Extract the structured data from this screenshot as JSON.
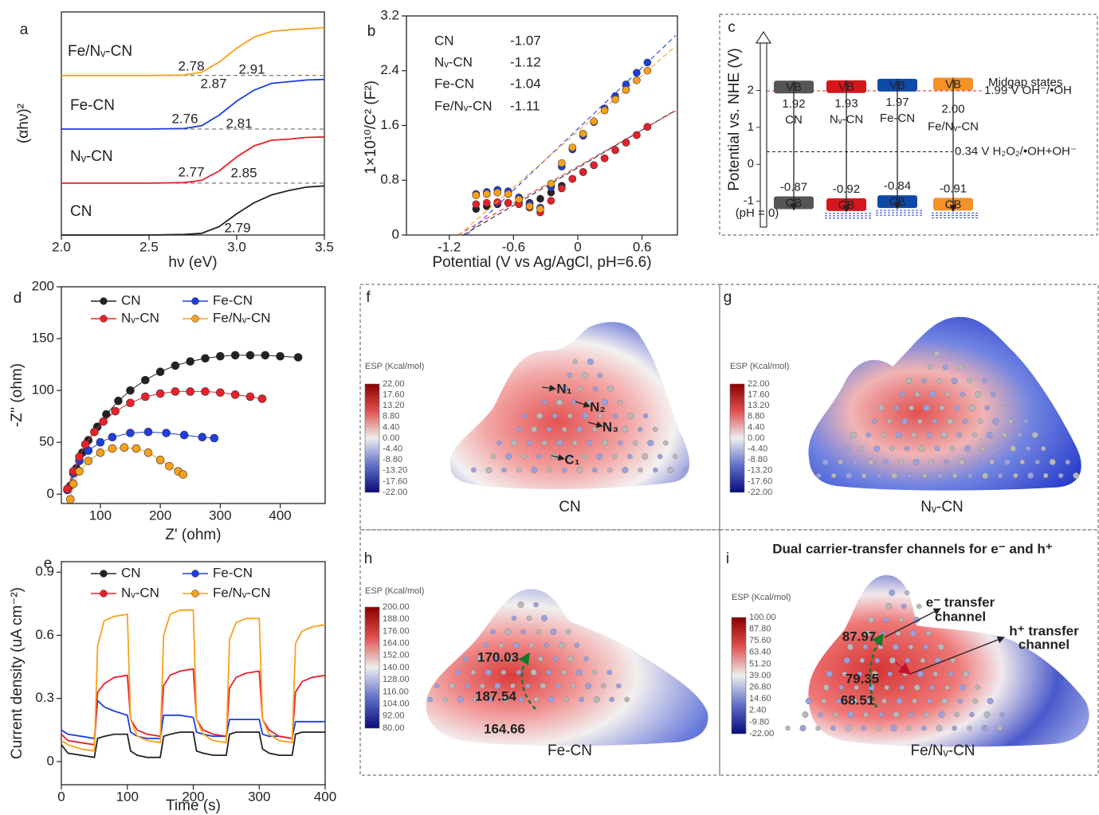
{
  "chart_data": [
    {
      "type": "line",
      "panel_label": "a",
      "x_label": "hν (eV)",
      "y_label": "(αhν)²",
      "x": [
        2.0,
        2.5,
        2.7,
        2.8,
        2.9,
        3.0,
        3.1,
        3.2,
        3.3,
        3.4,
        3.5
      ],
      "xlim": [
        2.0,
        3.5
      ],
      "xticks": [
        {
          "value": 2,
          "label": "2.0"
        },
        2.5,
        {
          "value": 3,
          "label": "3.0"
        },
        3.5
      ],
      "ylim": [
        0,
        4
      ],
      "baselines": [
        0.93,
        1.9,
        2.86
      ],
      "series": [
        {
          "name": "CN",
          "color": "#222222",
          "values": [
            0,
            0,
            0.01,
            0.03,
            0.15,
            0.38,
            0.58,
            0.72,
            0.8,
            0.86,
            0.88
          ],
          "annotations": [
            "2.79"
          ]
        },
        {
          "name": "Nᵥ-CN",
          "color": "#e8202a",
          "values": [
            0.93,
            0.93,
            0.94,
            0.98,
            1.15,
            1.4,
            1.6,
            1.7,
            1.72,
            1.75,
            1.76
          ],
          "annotations": [
            "2.77",
            "2.85"
          ]
        },
        {
          "name": "Fe-CN",
          "color": "#1f3ee0",
          "values": [
            1.9,
            1.9,
            1.91,
            1.96,
            2.15,
            2.4,
            2.6,
            2.72,
            2.75,
            2.78,
            2.79
          ],
          "annotations": [
            "2.76",
            "2.81"
          ]
        },
        {
          "name": "Fe/Nᵥ-CN",
          "color": "#f7a11a",
          "values": [
            2.86,
            2.86,
            2.87,
            2.92,
            3.1,
            3.35,
            3.55,
            3.65,
            3.68,
            3.7,
            3.72
          ],
          "annotations": [
            "2.78",
            "2.91",
            "2.87"
          ]
        }
      ]
    },
    {
      "type": "scatter",
      "panel_label": "b",
      "x_label": "Potential (V vs Ag/AgCl, pH=6.6)",
      "y_label": "1×10¹⁰/C² (F²)",
      "x": [
        -0.95,
        -0.85,
        -0.75,
        -0.65,
        -0.55,
        -0.45,
        -0.35,
        -0.25,
        -0.15,
        -0.05,
        0.05,
        0.15,
        0.25,
        0.35,
        0.45,
        0.55,
        0.65
      ],
      "xlim": [
        -1.6,
        0.93
      ],
      "xticks": [
        -1.2,
        -0.6,
        0,
        0.6
      ],
      "ylim": [
        0,
        3.2
      ],
      "yticks": [
        0,
        0.8,
        1.6,
        2.4,
        3.2
      ],
      "series": [
        {
          "name": "CN",
          "color": "#222222",
          "flatband": -1.07,
          "values": [
            0.38,
            0.42,
            0.45,
            0.47,
            0.47,
            0.47,
            0.53,
            0.62,
            0.72,
            0.82,
            0.92,
            1.02,
            1.12,
            1.24,
            1.35,
            1.46,
            1.58
          ]
        },
        {
          "name": "Nᵥ-CN",
          "color": "#e8202a",
          "flatband": -1.12,
          "values": [
            0.45,
            0.47,
            0.48,
            0.47,
            0.45,
            0.4,
            0.33,
            0.5,
            0.68,
            0.82,
            0.92,
            1.02,
            1.12,
            1.24,
            1.35,
            1.46,
            1.58
          ]
        },
        {
          "name": "Fe-CN",
          "color": "#1f3ee0",
          "flatband": -1.04,
          "values": [
            0.6,
            0.63,
            0.66,
            0.64,
            0.55,
            0.45,
            0.4,
            0.7,
            1.0,
            1.25,
            1.45,
            1.65,
            1.85,
            2.03,
            2.2,
            2.37,
            2.52
          ]
        },
        {
          "name": "Fe/Nᵥ-CN",
          "color": "#f7a11a",
          "flatband": -1.11,
          "values": [
            0.58,
            0.6,
            0.62,
            0.6,
            0.52,
            0.42,
            0.38,
            0.75,
            1.05,
            1.28,
            1.48,
            1.66,
            1.82,
            1.98,
            2.12,
            2.26,
            2.4
          ]
        }
      ]
    },
    {
      "type": "band",
      "panel_label": "c",
      "y_label": "Potential vs. NHE (V)",
      "categories": [
        "CN",
        "Nᵥ-CN",
        "Fe-CN",
        "Fe/Nᵥ-CN"
      ],
      "colors": [
        "#555555",
        "#d8141c",
        "#0f49a8",
        "#f39226"
      ],
      "midgap": [
        false,
        true,
        true,
        true
      ],
      "ylim": [
        -1.7,
        3.5
      ],
      "yticks": [
        -1,
        0,
        1,
        2
      ],
      "series": [
        {
          "name": "CB",
          "values": [
            -0.87,
            -0.92,
            -0.84,
            -0.91
          ]
        },
        {
          "name": "VB",
          "values": [
            1.92,
            1.93,
            1.97,
            2.0
          ],
          "value_labels": [
            "1.92",
            "1.93",
            "1.97",
            "2.00"
          ]
        }
      ],
      "reference_lines": [
        {
          "value": 0.34,
          "label": "0.34 V H₂O₂/•OH+OH⁻",
          "color": "#222222"
        },
        {
          "value": 1.99,
          "label": "1.99 V OH⁻/•OH",
          "color": "#e8202a"
        }
      ],
      "annotations": [
        "Midgap states",
        "(pH = 0)"
      ]
    },
    {
      "type": "scatter",
      "panel_label": "d",
      "x_label": "Z' (ohm)",
      "y_label": "-Z'' (ohm)",
      "xlim": [
        35,
        475
      ],
      "xticks": [
        100,
        200,
        300,
        400
      ],
      "ylim": [
        -9,
        200
      ],
      "yticks": [
        0,
        50,
        100,
        150,
        200
      ],
      "legend": "top",
      "series": [
        {
          "name": "CN",
          "color": "#222222",
          "x": [
            50,
            60,
            70,
            80,
            95,
            110,
            130,
            150,
            175,
            200,
            225,
            250,
            275,
            300,
            325,
            350,
            375,
            400,
            430
          ],
          "values": [
            8,
            25,
            40,
            52,
            65,
            77,
            90,
            100,
            110,
            118,
            124,
            128,
            131,
            133,
            134,
            134,
            134,
            133,
            132
          ]
        },
        {
          "name": "Fe-CN",
          "color": "#1f3ee0",
          "x": [
            45,
            55,
            65,
            80,
            100,
            120,
            150,
            180,
            210,
            240,
            270,
            290
          ],
          "values": [
            4,
            20,
            32,
            42,
            50,
            55,
            59,
            60,
            59,
            57,
            55,
            54
          ]
        },
        {
          "name": "Nᵥ-CN",
          "color": "#e8202a",
          "x": [
            45,
            55,
            65,
            75,
            90,
            105,
            125,
            150,
            175,
            200,
            225,
            250,
            275,
            300,
            325,
            350,
            370
          ],
          "values": [
            5,
            22,
            36,
            48,
            60,
            70,
            80,
            88,
            94,
            97,
            99,
            99,
            99,
            98,
            96,
            94,
            92
          ]
        },
        {
          "name": "Fe/Nᵥ-CN",
          "color": "#f7a11a",
          "x": [
            50,
            55,
            65,
            80,
            100,
            120,
            140,
            160,
            180,
            200,
            215,
            230,
            238
          ],
          "values": [
            -5,
            10,
            22,
            32,
            40,
            44,
            45,
            44,
            40,
            33,
            27,
            22,
            19
          ]
        }
      ]
    },
    {
      "type": "line",
      "panel_label": "e",
      "x_label": "Time (s)",
      "y_label": "Current density (uA cm⁻²)",
      "x": [
        0,
        10,
        30,
        50,
        50,
        55,
        65,
        80,
        100,
        100,
        105,
        115,
        130,
        150,
        150,
        155,
        165,
        180,
        200,
        200,
        205,
        215,
        230,
        250,
        250,
        255,
        265,
        280,
        300,
        300,
        305,
        315,
        330,
        350,
        350,
        355,
        365,
        380,
        400
      ],
      "xlim": [
        0,
        400
      ],
      "xticks": [
        0,
        100,
        200,
        300,
        400
      ],
      "ylim": [
        -0.11,
        0.95
      ],
      "yticks": [
        0,
        0.3,
        0.6,
        0.9
      ],
      "legend": "top",
      "series": [
        {
          "name": "CN",
          "color": "#222222",
          "values": [
            0.08,
            0.04,
            0.03,
            0.02,
            0.02,
            0.11,
            0.12,
            0.13,
            0.13,
            0.13,
            0.05,
            0.03,
            0.02,
            0.02,
            0.02,
            0.12,
            0.13,
            0.14,
            0.14,
            0.14,
            0.05,
            0.04,
            0.03,
            0.03,
            0.03,
            0.13,
            0.14,
            0.14,
            0.14,
            0.14,
            0.06,
            0.04,
            0.03,
            0.03,
            0.03,
            0.13,
            0.14,
            0.14,
            0.14
          ]
        },
        {
          "name": "Fe-CN",
          "color": "#1f3ee0",
          "values": [
            0.15,
            0.13,
            0.12,
            0.11,
            0.11,
            0.29,
            0.26,
            0.24,
            0.22,
            0.22,
            0.14,
            0.12,
            0.11,
            0.11,
            0.11,
            0.22,
            0.22,
            0.22,
            0.21,
            0.21,
            0.14,
            0.13,
            0.12,
            0.12,
            0.12,
            0.2,
            0.2,
            0.2,
            0.2,
            0.2,
            0.13,
            0.12,
            0.12,
            0.11,
            0.11,
            0.19,
            0.19,
            0.19,
            0.19
          ]
        },
        {
          "name": "Nᵥ-CN",
          "color": "#e8202a",
          "values": [
            0.13,
            0.1,
            0.09,
            0.08,
            0.08,
            0.33,
            0.37,
            0.4,
            0.41,
            0.41,
            0.2,
            0.15,
            0.13,
            0.12,
            0.12,
            0.36,
            0.41,
            0.43,
            0.44,
            0.44,
            0.2,
            0.15,
            0.13,
            0.12,
            0.12,
            0.35,
            0.4,
            0.42,
            0.43,
            0.43,
            0.2,
            0.15,
            0.12,
            0.11,
            0.11,
            0.33,
            0.38,
            0.4,
            0.41
          ]
        },
        {
          "name": "Fe/Nᵥ-CN",
          "color": "#f7a11a",
          "values": [
            0.1,
            0.08,
            0.06,
            0.05,
            0.05,
            0.55,
            0.67,
            0.69,
            0.7,
            0.7,
            0.2,
            0.12,
            0.1,
            0.09,
            0.09,
            0.6,
            0.7,
            0.72,
            0.72,
            0.72,
            0.2,
            0.13,
            0.1,
            0.09,
            0.09,
            0.58,
            0.66,
            0.68,
            0.68,
            0.68,
            0.2,
            0.13,
            0.1,
            0.09,
            0.09,
            0.56,
            0.62,
            0.64,
            0.65
          ]
        }
      ]
    }
  ],
  "esp_panels": [
    {
      "label": "f",
      "caption": "CN",
      "scale_title": "ESP (Kcal/mol)",
      "scale_ticks": [
        "22.00",
        "17.60",
        "13.20",
        "8.80",
        "4.40",
        "0.00",
        "-4.40",
        "-8.80",
        "-13.20",
        "-17.60",
        "-22.00"
      ],
      "annotations": [
        "N₁",
        "N₂",
        "N₃",
        "C₁"
      ]
    },
    {
      "label": "g",
      "caption": "Nᵥ-CN",
      "scale_title": "ESP (Kcal/mol)",
      "scale_ticks": [
        "22.00",
        "17.60",
        "13.20",
        "8.80",
        "4.40",
        "0.00",
        "-4.40",
        "-8.80",
        "-13.20",
        "-17.60",
        "-22.00"
      ]
    },
    {
      "label": "h",
      "caption": "Fe-CN",
      "scale_title": "ESP (Kcal/mol)",
      "scale_ticks": [
        "200.00",
        "188.00",
        "176.00",
        "164.00",
        "152.00",
        "140.00",
        "128.00",
        "116.00",
        "104.00",
        "92.00",
        "80.00"
      ],
      "annotations": [
        "170.03",
        "187.54",
        "164.66"
      ]
    },
    {
      "label": "i",
      "caption": "Fe/Nᵥ-CN",
      "scale_title": "ESP (Kcal/mol)",
      "title": "Dual carrier-transfer channels for e⁻ and h⁺",
      "scale_ticks": [
        "100.00",
        "87.80",
        "75.60",
        "63.40",
        "51.20",
        "39.00",
        "26.80",
        "14.60",
        "2.40",
        "-9.80",
        "-22.00"
      ],
      "annotations": [
        "87.97",
        "79.35",
        "68.51"
      ],
      "channels": [
        "e⁻ transfer",
        "channel",
        "h⁺ transfer",
        "channel"
      ]
    }
  ]
}
